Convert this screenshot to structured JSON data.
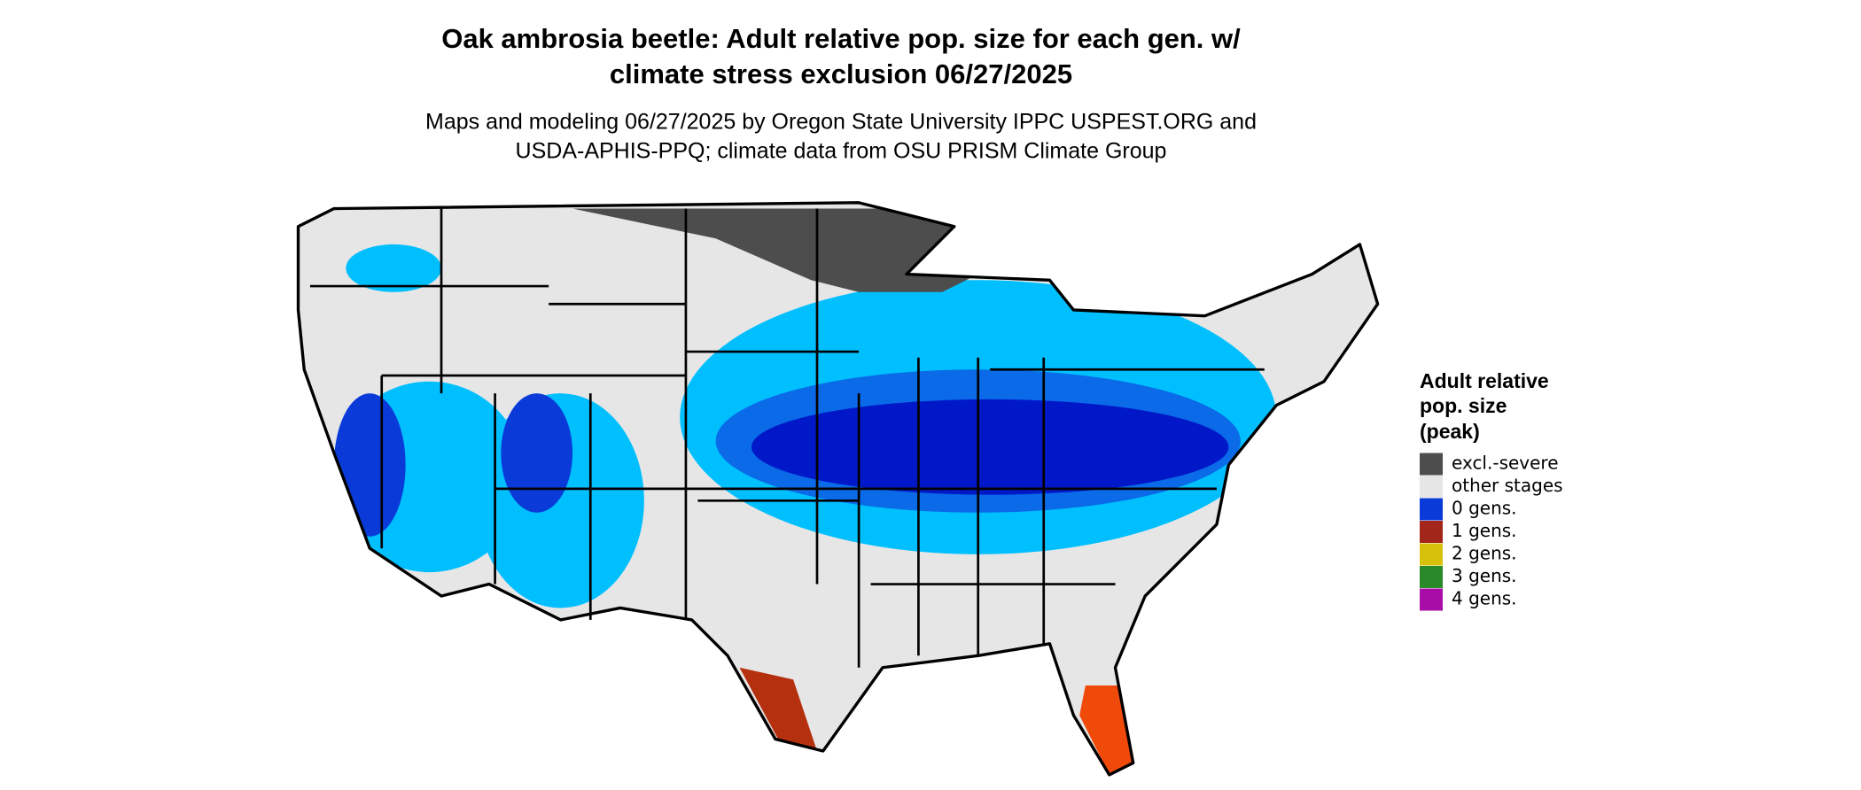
{
  "header": {
    "title": [
      "Oak ambrosia beetle: Adult relative pop. size for each gen. w/",
      "climate stress exclusion 06/27/2025"
    ],
    "subtitle": [
      "Maps and modeling 06/27/2025 by Oregon State University IPPC USPEST.ORG and",
      "USDA-APHIS-PPQ; climate data from OSU PRISM Climate Group"
    ]
  },
  "legend": {
    "title": [
      "Adult relative",
      "pop. size",
      "(peak)"
    ],
    "items": [
      {
        "label": "excl.-severe",
        "color": "#4d4d4d"
      },
      {
        "label": "other stages",
        "color": "#e6e6e6"
      },
      {
        "label": "0 gens.",
        "color": "#0a3bd9"
      },
      {
        "label": "1 gens.",
        "color": "#a3261a"
      },
      {
        "label": "2 gens.",
        "color": "#d6c20a"
      },
      {
        "label": "3 gens.",
        "color": "#2a8a2a"
      },
      {
        "label": "4 gens.",
        "color": "#a80da8"
      }
    ]
  }
}
